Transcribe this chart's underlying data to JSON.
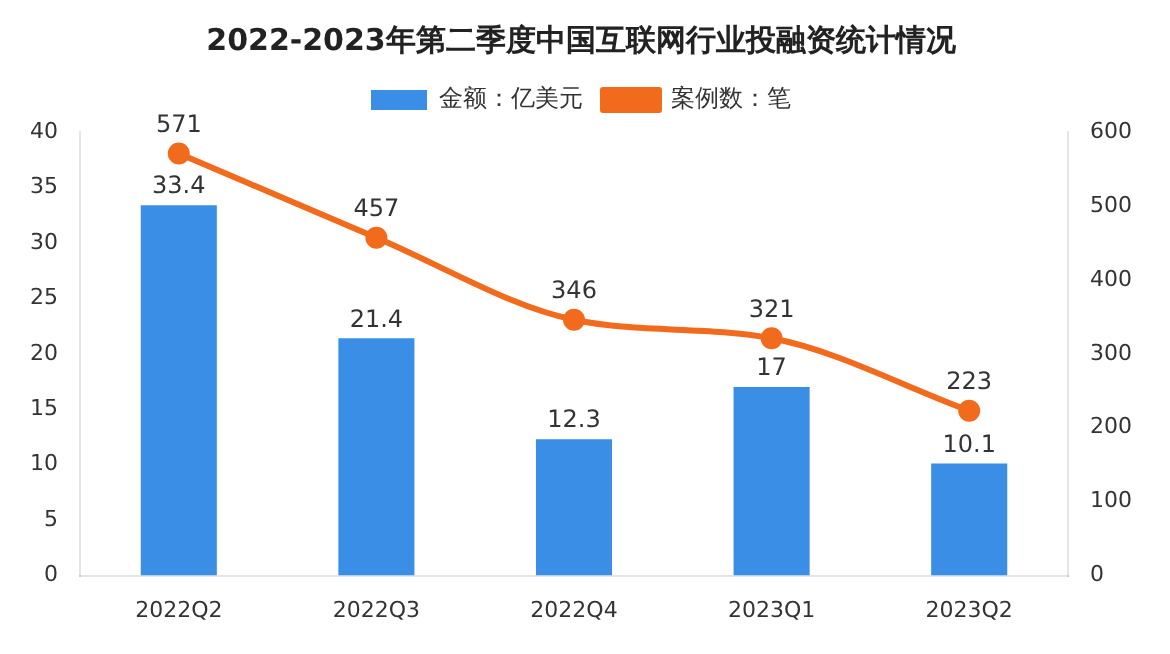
{
  "chart_data": {
    "type": "bar",
    "title": "2022-2023年第二季度中国互联网行业投融资统计情况",
    "categories": [
      "2022Q2",
      "2022Q3",
      "2022Q4",
      "2023Q1",
      "2023Q2"
    ],
    "series": [
      {
        "name": "金额：亿美元",
        "color": "#3a8ee6",
        "values": [
          33.4,
          21.4,
          12.3,
          17,
          10.1
        ]
      },
      {
        "name": "案例数：笔",
        "type": "line",
        "axis": "y2",
        "color": "#f26b1d",
        "values": [
          571,
          457,
          346,
          321,
          223
        ]
      }
    ],
    "ylim": [
      0,
      40
    ],
    "yticks": [
      0,
      5,
      10,
      15,
      20,
      25,
      30,
      35,
      40
    ],
    "y2lim": [
      0,
      600
    ],
    "y2ticks": [
      0,
      100,
      200,
      300,
      400,
      500,
      600
    ],
    "data_labels": true,
    "legend": "top",
    "grid": false,
    "marker": "circle"
  }
}
